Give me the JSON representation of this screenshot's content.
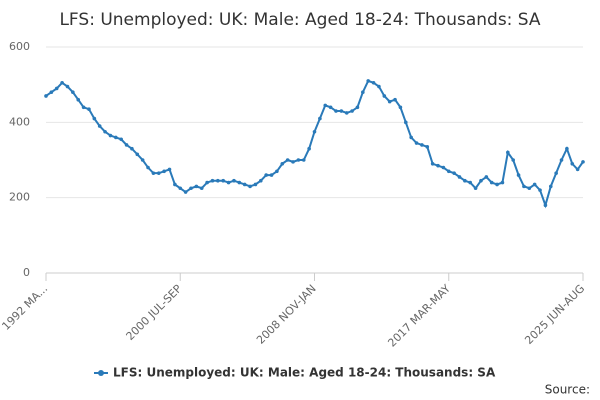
{
  "chart_data": {
    "type": "line",
    "title": "LFS: Unemployed: UK: Male: Aged 18-24: Thousands: SA",
    "source": "Source:",
    "categories": [
      "1992 MA...",
      null,
      null,
      null,
      null,
      null,
      null,
      null,
      null,
      null,
      null,
      null,
      null,
      null,
      null,
      null,
      null,
      null,
      null,
      null,
      null,
      null,
      null,
      null,
      null,
      "2000 JUL-SEP",
      null,
      null,
      null,
      null,
      null,
      null,
      null,
      null,
      null,
      null,
      null,
      null,
      null,
      null,
      null,
      null,
      null,
      null,
      null,
      null,
      null,
      null,
      null,
      null,
      "2008 NOV-JAN",
      null,
      null,
      null,
      null,
      null,
      null,
      null,
      null,
      null,
      null,
      null,
      null,
      null,
      null,
      null,
      null,
      null,
      null,
      null,
      null,
      null,
      null,
      null,
      null,
      "2017 MAR-MAY",
      null,
      null,
      null,
      null,
      null,
      null,
      null,
      null,
      null,
      null,
      null,
      null,
      null,
      null,
      null,
      null,
      null,
      null,
      null,
      null,
      null,
      null,
      null,
      null,
      "2025 JUN-AUG"
    ],
    "series": [
      {
        "name": "LFS: Unemployed: UK: Male: Aged 18-24: Thousands: SA",
        "color": "#2a7ab9",
        "values": [
          470,
          480,
          490,
          505,
          495,
          480,
          460,
          440,
          435,
          410,
          390,
          375,
          365,
          360,
          355,
          340,
          330,
          315,
          300,
          280,
          265,
          265,
          270,
          275,
          235,
          225,
          215,
          225,
          230,
          225,
          240,
          245,
          245,
          245,
          240,
          245,
          240,
          235,
          230,
          235,
          245,
          260,
          260,
          270,
          290,
          300,
          295,
          300,
          300,
          330,
          375,
          410,
          445,
          440,
          430,
          430,
          425,
          430,
          440,
          480,
          510,
          505,
          495,
          470,
          455,
          460,
          440,
          400,
          360,
          345,
          340,
          335,
          290,
          285,
          280,
          270,
          265,
          255,
          245,
          240,
          225,
          245,
          255,
          240,
          235,
          240,
          320,
          300,
          260,
          230,
          225,
          235,
          220,
          180,
          230,
          265,
          300,
          330,
          290,
          275,
          295
        ]
      }
    ],
    "ylim": [
      0,
      600
    ],
    "yticks": [
      0,
      200,
      400,
      600
    ],
    "grid": true,
    "legend": "bottom"
  }
}
